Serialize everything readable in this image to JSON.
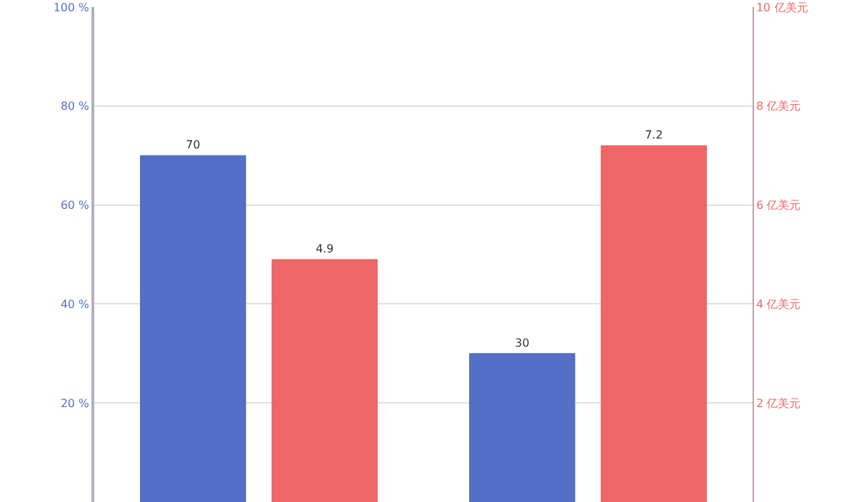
{
  "chart_data": {
    "type": "bar",
    "categories": [
      null,
      null
    ],
    "series": [
      {
        "color": "#5470c6",
        "values": [
          70,
          30
        ],
        "axis": "y"
      },
      {
        "color": "#ee6666",
        "values": [
          4.9,
          7.2
        ],
        "axis": "y2"
      }
    ],
    "ylim": [
      0,
      100
    ],
    "yticks": [
      {
        "value": 20,
        "label": "20 %"
      },
      {
        "value": 40,
        "label": "40 %"
      },
      {
        "value": 60,
        "label": "60 %"
      },
      {
        "value": 80,
        "label": "80 %"
      },
      {
        "value": 100,
        "label": "100 %"
      }
    ],
    "y2lim": [
      0,
      10
    ],
    "y2ticks": [
      {
        "value": 2,
        "label": "2 亿美元"
      },
      {
        "value": 4,
        "label": "4 亿美元"
      },
      {
        "value": 6,
        "label": "6 亿美元"
      },
      {
        "value": 8,
        "label": "8 亿美元"
      },
      {
        "value": 10,
        "label": "10 亿美元"
      }
    ],
    "grid": "y",
    "data_labels": true
  }
}
